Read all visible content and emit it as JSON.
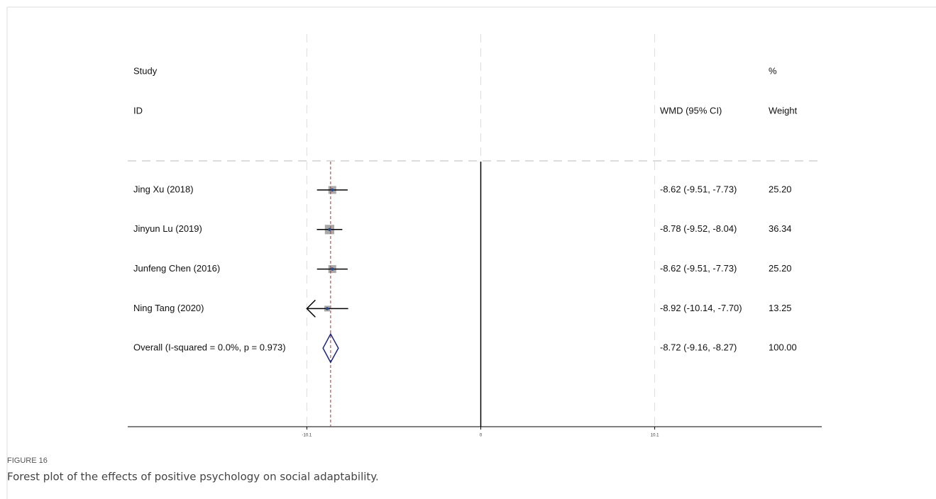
{
  "chart_data": {
    "type": "forest",
    "headers": {
      "study": "Study",
      "id": "ID",
      "effect": "WMD (95% CI)",
      "percent": "%",
      "weight": "Weight"
    },
    "studies": [
      {
        "name": "Jing Xu (2018)",
        "estimate": -8.62,
        "lower": -9.51,
        "upper": -7.73,
        "ci_label": "-8.62 (-9.51, -7.73)",
        "weight": 25.2,
        "weight_label": "25.20"
      },
      {
        "name": "Jinyun Lu (2019)",
        "estimate": -8.78,
        "lower": -9.52,
        "upper": -8.04,
        "ci_label": "-8.78 (-9.52, -8.04)",
        "weight": 36.34,
        "weight_label": "36.34"
      },
      {
        "name": "Junfeng Chen (2016)",
        "estimate": -8.62,
        "lower": -9.51,
        "upper": -7.73,
        "ci_label": "-8.62 (-9.51, -7.73)",
        "weight": 25.2,
        "weight_label": "25.20"
      },
      {
        "name": "Ning Tang (2020)",
        "estimate": -8.92,
        "lower": -10.14,
        "upper": -7.7,
        "ci_label": "-8.92 (-10.14, -7.70)",
        "weight": 13.25,
        "weight_label": "13.25"
      }
    ],
    "overall": {
      "name": "Overall  (I-squared = 0.0%, p = 0.973)",
      "estimate": -8.72,
      "lower": -9.16,
      "upper": -8.27,
      "ci_label": "-8.72 (-9.16, -8.27)",
      "weight": 100,
      "weight_label": "100.00"
    },
    "xlim": [
      -20.5,
      19.8
    ],
    "xticks": [
      -10.1,
      0,
      10.1
    ],
    "colors": {
      "box": "#a9a9a9",
      "point": "#2a4a8a",
      "ci": "#000000",
      "diamond": "#1a237e",
      "overall_line": "#a83232",
      "grid": "#dddddd"
    }
  },
  "figure": {
    "label": "FIGURE 16",
    "caption": "Forest plot of the effects of positive psychology on social adaptability."
  }
}
